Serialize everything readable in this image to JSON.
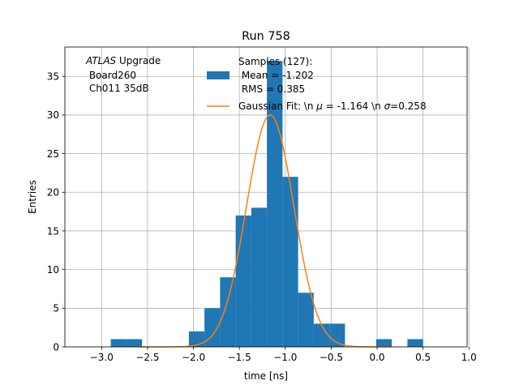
{
  "chart_data": {
    "type": "bar",
    "title": "Run 758",
    "xlabel": "time [ns]",
    "ylabel": "Entries",
    "xlim": [
      -3.4,
      0.98
    ],
    "ylim": [
      0,
      38.8
    ],
    "grid": true,
    "xticks": [
      -3.0,
      -2.5,
      -2.0,
      -1.5,
      -1.0,
      -0.5,
      0.0,
      0.5,
      1.0
    ],
    "xtick_labels": [
      "−3.0",
      "−2.5",
      "−2.0",
      "−1.5",
      "−1.0",
      "−0.5",
      "0.0",
      "0.5",
      "1.0"
    ],
    "yticks": [
      0,
      5,
      10,
      15,
      20,
      25,
      30,
      35
    ],
    "ytick_labels": [
      "0",
      "5",
      "10",
      "15",
      "20",
      "25",
      "30",
      "35"
    ],
    "histogram": {
      "name_lines": [
        "Samples (127):",
        " Mean = -1.202",
        " RMS = 0.385"
      ],
      "color": "#1f77b4",
      "bins": [
        {
          "x0": -2.9,
          "x1": -2.73,
          "count": 1
        },
        {
          "x0": -2.73,
          "x1": -2.56,
          "count": 1
        },
        {
          "x0": -2.05,
          "x1": -1.88,
          "count": 2
        },
        {
          "x0": -1.88,
          "x1": -1.71,
          "count": 5
        },
        {
          "x0": -1.71,
          "x1": -1.54,
          "count": 9
        },
        {
          "x0": -1.54,
          "x1": -1.37,
          "count": 17
        },
        {
          "x0": -1.37,
          "x1": -1.2,
          "count": 18
        },
        {
          "x0": -1.2,
          "x1": -1.03,
          "count": 37
        },
        {
          "x0": -1.03,
          "x1": -0.86,
          "count": 22
        },
        {
          "x0": -0.86,
          "x1": -0.69,
          "count": 7
        },
        {
          "x0": -0.69,
          "x1": -0.52,
          "count": 3
        },
        {
          "x0": -0.52,
          "x1": -0.35,
          "count": 3
        },
        {
          "x0": -0.01,
          "x1": 0.16,
          "count": 1
        },
        {
          "x0": 0.33,
          "x1": 0.5,
          "count": 1
        }
      ]
    },
    "fit": {
      "name_prefix": "Gaussian Fit: \\n ",
      "mu_symbol": "μ",
      "mu_text": " = -1.164 \\n ",
      "sigma_symbol": "σ",
      "sigma_text": "=0.258",
      "color": "#ff7f0e",
      "mu": -1.164,
      "sigma": 0.258,
      "amplitude": 30.0,
      "x_range": [
        -2.6,
        0.16
      ]
    },
    "annotation": {
      "italic": "ATLAS",
      "rest": " Upgrade",
      "line2": " Board260",
      "line3": " Ch011 35dB"
    }
  }
}
